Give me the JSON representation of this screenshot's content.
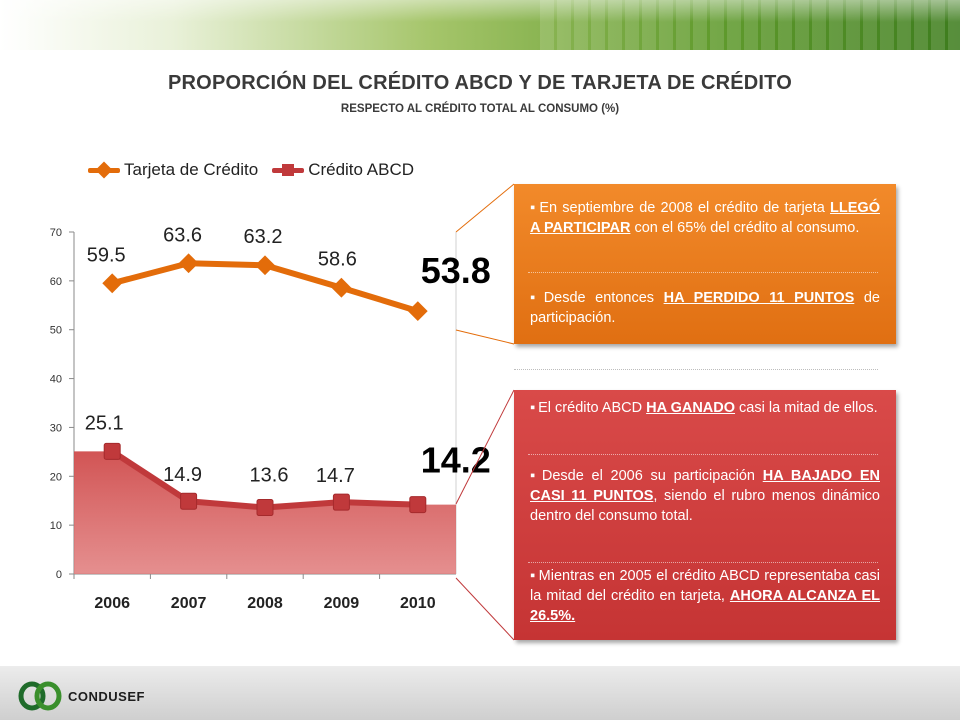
{
  "header": {
    "title": "PROPORCIÓN DEL CRÉDITO ABCD Y DE TARJETA DE CRÉDITO",
    "subtitle": "RESPECTO AL CRÉDITO TOTAL AL CONSUMO (%)"
  },
  "colors": {
    "tarjeta": "#e36c0a",
    "abcd": "#c0393b",
    "orange_panel": "#ea7a1c",
    "red_panel": "#cf3f3f"
  },
  "chart_data": {
    "type": "line",
    "categories": [
      "2006",
      "2007",
      "2008",
      "2009",
      "2010"
    ],
    "series": [
      {
        "name": "Tarjeta de Crédito",
        "values": [
          59.5,
          63.6,
          63.2,
          58.6,
          53.8
        ],
        "labels": [
          "59.5",
          "63.6",
          "63.2",
          "58.6",
          "53.8"
        ],
        "marker": "diamond"
      },
      {
        "name": "Crédito ABCD",
        "values": [
          25.1,
          14.9,
          13.6,
          14.7,
          14.2
        ],
        "labels": [
          "25.1",
          "14.9",
          "13.6",
          "14.7",
          "14.2"
        ],
        "marker": "square",
        "area_fill": true
      }
    ],
    "y_ticks": [
      "0",
      "10",
      "20",
      "30",
      "40",
      "50",
      "60",
      "70"
    ],
    "ylim": [
      0,
      70
    ],
    "grid": false,
    "legend": "top"
  },
  "callouts": {
    "orange": {
      "p1_before": "En septiembre de 2008 el crédito de tarjeta ",
      "p1_emph": "LLEGÓ A PARTICIPAR",
      "p1_after": " con el 65% del crédito al consumo.",
      "p2_before": "Desde entonces ",
      "p2_emph": "HA PERDIDO 11 PUNTOS",
      "p2_after": " de participación."
    },
    "red": {
      "p1_before": "El crédito ABCD ",
      "p1_emph": "HA GANADO",
      "p1_after": " casi la mitad de ellos.",
      "p2_before": "Desde el 2006 su participación ",
      "p2_emph": "HA BAJADO EN CASI 11 PUNTOS",
      "p2_after": ", siendo el rubro menos dinámico dentro del consumo total.",
      "p3_before": "Mientras en 2005 el crédito ABCD representaba casi la mitad del crédito en tarjeta, ",
      "p3_emph": "AHORA ALCANZA EL 26.5%."
    }
  },
  "footer": {
    "logo_text": "CONDUSEF"
  }
}
